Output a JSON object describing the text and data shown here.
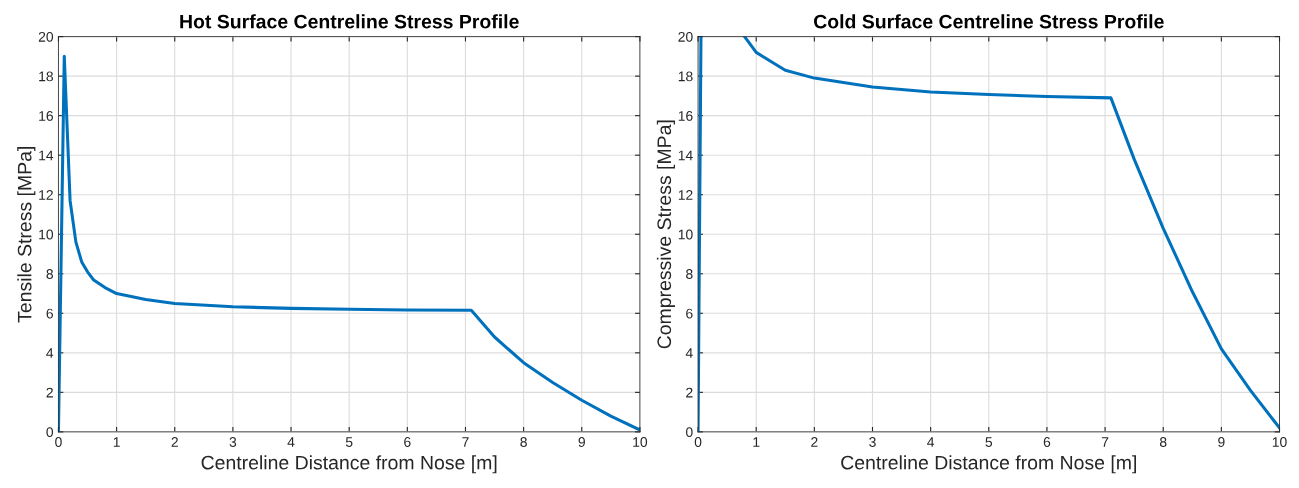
{
  "chart_data": [
    {
      "type": "line",
      "title": "Hot Surface Centreline Stress Profile",
      "xlabel": "Centreline Distance from Nose [m]",
      "ylabel": "Tensile Stress [MPa]",
      "x": [
        0,
        0.1,
        0.2,
        0.3,
        0.4,
        0.5,
        0.6,
        0.8,
        1,
        1.5,
        2,
        3,
        4,
        5,
        6,
        7.1,
        7.5,
        8,
        8.5,
        9,
        9.5,
        10
      ],
      "series": [
        {
          "color": "#0072bd",
          "values": [
            0,
            19,
            11.7,
            9.6,
            8.6,
            8.1,
            7.7,
            7.3,
            7.0,
            6.7,
            6.5,
            6.33,
            6.25,
            6.2,
            6.17,
            6.15,
            4.8,
            3.5,
            2.5,
            1.6,
            0.8,
            0.1
          ]
        }
      ],
      "xlim": [
        0,
        10
      ],
      "xticks": [
        0,
        1,
        2,
        3,
        4,
        5,
        6,
        7,
        8,
        9,
        10
      ],
      "ylim": [
        0,
        20
      ],
      "yticks": [
        0,
        2,
        4,
        6,
        8,
        10,
        12,
        14,
        16,
        18,
        20
      ],
      "grid": true,
      "legend": false
    },
    {
      "type": "line",
      "title": "Cold Surface Centreline Stress Profile",
      "xlabel": "Centreline Distance from Nose [m]",
      "ylabel": "Compressive Stress [MPa]",
      "x": [
        0,
        0.05,
        0.5,
        0.8,
        1,
        1.5,
        2,
        3,
        4,
        5,
        6,
        7.1,
        7.5,
        8,
        8.5,
        9,
        9.5,
        10
      ],
      "series": [
        {
          "color": "#0072bd",
          "values": [
            0,
            20,
            null,
            20,
            19.2,
            18.3,
            17.9,
            17.45,
            17.2,
            17.07,
            16.97,
            16.9,
            13.8,
            10.3,
            7.1,
            4.2,
            2.1,
            0.2
          ]
        }
      ],
      "xlim": [
        0,
        10
      ],
      "xticks": [
        0,
        1,
        2,
        3,
        4,
        5,
        6,
        7,
        8,
        9,
        10
      ],
      "ylim": [
        0,
        20
      ],
      "yticks": [
        0,
        2,
        4,
        6,
        8,
        10,
        12,
        14,
        16,
        18,
        20
      ],
      "grid": true,
      "legend": false
    }
  ]
}
